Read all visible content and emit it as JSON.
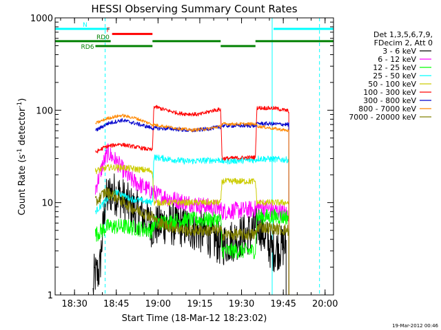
{
  "chart_data": {
    "type": "line",
    "title": "HESSI Observing Summary Count Rates",
    "xlabel": "Start Time (18-Mar-12 18:23:02)",
    "ylabel_main": "Count Rate (s",
    "ylabel_sup1": "-1",
    "ylabel_mid": " detector",
    "ylabel_sup2": "-1",
    "ylabel_end": ")",
    "footer": "19-Mar-2012 00:46",
    "y_scale": "log",
    "xlim": [
      "18:23:02",
      "20:03:02"
    ],
    "ylim": [
      1,
      1000
    ],
    "x_ticks": [
      "18:30",
      "18:45",
      "19:00",
      "19:15",
      "19:30",
      "19:45",
      "20:00"
    ],
    "y_ticks": [
      "1",
      "10",
      "100",
      "1000"
    ],
    "legend_placement": "right",
    "legend_header": [
      "Det 1,3,5,6,7,9,",
      "FDecim 2, Att 0"
    ],
    "flags": [
      {
        "label": "N",
        "color": "#00ffff",
        "level": 760,
        "segments": [
          [
            "18:23:02",
            "18:42:30"
          ],
          [
            "19:41:30",
            "20:03:02"
          ]
        ]
      },
      {
        "label": "F",
        "color": "#ff0000",
        "level": 670,
        "segments": [
          [
            "18:43:30",
            "18:58:00"
          ]
        ]
      },
      {
        "label": "RD0",
        "color": "#008000",
        "level": 560,
        "segments": [
          [
            "18:23:02",
            "18:43:00"
          ],
          [
            "18:58:00",
            "19:22:30"
          ],
          [
            "19:35:00",
            "20:03:02"
          ]
        ]
      },
      {
        "label": "RD6",
        "color": "#008000",
        "level": 495,
        "segments": [
          [
            "18:37:30",
            "18:58:00"
          ],
          [
            "19:22:30",
            "19:35:00"
          ]
        ]
      }
    ],
    "vlines": [
      {
        "x": "18:23:02",
        "color": "#00ffff",
        "style": "solid"
      },
      {
        "x": "18:41:00",
        "color": "#00ffff",
        "style": "dashed"
      },
      {
        "x": "19:41:00",
        "color": "#00ffff",
        "style": "solid"
      },
      {
        "x": "19:58:00",
        "color": "#00ffff",
        "style": "dashed"
      }
    ],
    "series": [
      {
        "name": "3 - 6 keV",
        "color": "#000000",
        "noise": 0.55,
        "points": [
          [
            "18:36:40",
            1.0
          ],
          [
            "18:37:00",
            1.6
          ],
          [
            "18:39:00",
            1.8
          ],
          [
            "18:41:00",
            10
          ],
          [
            "18:43:00",
            13
          ],
          [
            "18:46:00",
            12
          ],
          [
            "18:50:00",
            9
          ],
          [
            "18:55:00",
            7
          ],
          [
            "18:58:00",
            5.5
          ],
          [
            "19:02:00",
            6
          ],
          [
            "19:10:00",
            5.5
          ],
          [
            "19:18:00",
            4.5
          ],
          [
            "19:22:30",
            3.5
          ],
          [
            "19:23:00",
            3.5
          ],
          [
            "19:35:00",
            5
          ],
          [
            "19:36:00",
            6
          ],
          [
            "19:41:00",
            3
          ],
          [
            "19:46:00",
            3.5
          ]
        ]
      },
      {
        "name": "6 - 12 keV",
        "color": "#ff00ff",
        "noise": 0.22,
        "points": [
          [
            "18:37:30",
            14
          ],
          [
            "18:40:00",
            25
          ],
          [
            "18:42:00",
            35
          ],
          [
            "18:45:00",
            28
          ],
          [
            "18:50:00",
            18
          ],
          [
            "18:58:00",
            13
          ],
          [
            "19:00:00",
            12
          ],
          [
            "19:10:00",
            10
          ],
          [
            "19:22:30",
            8.5
          ],
          [
            "19:23:00",
            8
          ],
          [
            "19:35:00",
            8.5
          ],
          [
            "19:36:00",
            9
          ],
          [
            "19:40:00",
            8.5
          ],
          [
            "19:47:00",
            7.5
          ]
        ]
      },
      {
        "name": "12 - 25 keV",
        "color": "#00ff00",
        "noise": 0.2,
        "points": [
          [
            "18:37:30",
            4.5
          ],
          [
            "18:42:00",
            5.5
          ],
          [
            "18:48:00",
            5.5
          ],
          [
            "18:58:00",
            5
          ],
          [
            "18:58:30",
            6
          ],
          [
            "19:10:00",
            6.5
          ],
          [
            "19:22:30",
            6.5
          ],
          [
            "19:23:00",
            3
          ],
          [
            "19:35:00",
            3
          ],
          [
            "19:35:30",
            7
          ],
          [
            "19:47:00",
            7
          ]
        ]
      },
      {
        "name": "25 - 50 keV",
        "color": "#00ffff",
        "noise": 0.08,
        "points": [
          [
            "18:37:30",
            8
          ],
          [
            "18:42:00",
            11
          ],
          [
            "18:45:00",
            13
          ],
          [
            "18:50:00",
            11
          ],
          [
            "18:58:00",
            10
          ],
          [
            "18:58:30",
            31
          ],
          [
            "19:10:00",
            28
          ],
          [
            "19:22:30",
            29
          ],
          [
            "19:23:00",
            28
          ],
          [
            "19:35:00",
            29
          ],
          [
            "19:36:00",
            30
          ],
          [
            "19:47:00",
            29
          ]
        ]
      },
      {
        "name": "50 - 100 keV",
        "color": "#cccc00",
        "noise": 0.08,
        "points": [
          [
            "18:37:30",
            22
          ],
          [
            "18:42:00",
            24
          ],
          [
            "18:47:00",
            24
          ],
          [
            "18:58:00",
            22
          ],
          [
            "18:58:30",
            10
          ],
          [
            "19:10:00",
            10
          ],
          [
            "19:22:30",
            10
          ],
          [
            "19:23:00",
            17
          ],
          [
            "19:35:00",
            17
          ],
          [
            "19:35:30",
            10
          ],
          [
            "19:47:00",
            10
          ]
        ]
      },
      {
        "name": "100 - 300 keV",
        "color": "#ff0000",
        "noise": 0.05,
        "points": [
          [
            "18:37:30",
            35
          ],
          [
            "18:41:00",
            40
          ],
          [
            "18:46:00",
            43
          ],
          [
            "18:52:00",
            40
          ],
          [
            "18:58:00",
            37
          ],
          [
            "18:58:30",
            110
          ],
          [
            "19:03:00",
            100
          ],
          [
            "19:08:00",
            92
          ],
          [
            "19:15:00",
            90
          ],
          [
            "19:20:00",
            100
          ],
          [
            "19:22:30",
            102
          ],
          [
            "19:23:00",
            30
          ],
          [
            "19:35:00",
            31
          ],
          [
            "19:35:30",
            106
          ],
          [
            "19:42:00",
            105
          ],
          [
            "19:47:00",
            98
          ]
        ]
      },
      {
        "name": "300 - 800 keV",
        "color": "#0000cc",
        "noise": 0.05,
        "points": [
          [
            "18:37:30",
            60
          ],
          [
            "18:42:00",
            72
          ],
          [
            "18:47:00",
            78
          ],
          [
            "18:52:00",
            72
          ],
          [
            "18:58:00",
            64
          ],
          [
            "19:05:00",
            63
          ],
          [
            "19:12:00",
            60
          ],
          [
            "19:18:00",
            63
          ],
          [
            "19:22:30",
            66
          ],
          [
            "19:23:00",
            68
          ],
          [
            "19:35:00",
            68
          ],
          [
            "19:36:00",
            72
          ],
          [
            "19:47:00",
            70
          ]
        ]
      },
      {
        "name": "800 - 7000 keV",
        "color": "#ff8800",
        "noise": 0.04,
        "points": [
          [
            "18:37:30",
            72
          ],
          [
            "18:42:00",
            82
          ],
          [
            "18:47:00",
            88
          ],
          [
            "18:52:00",
            82
          ],
          [
            "18:58:00",
            70
          ],
          [
            "19:05:00",
            65
          ],
          [
            "19:12:00",
            61
          ],
          [
            "19:18:00",
            63
          ],
          [
            "19:22:30",
            67
          ],
          [
            "19:23:00",
            71
          ],
          [
            "19:35:00",
            71
          ],
          [
            "19:36:00",
            67
          ],
          [
            "19:47:00",
            60
          ]
        ]
      },
      {
        "name": "7000 - 20000 keV",
        "color": "#808000",
        "noise": 0.15,
        "points": [
          [
            "18:37:30",
            10
          ],
          [
            "18:41:00",
            13
          ],
          [
            "18:44:00",
            12
          ],
          [
            "18:50:00",
            9
          ],
          [
            "18:58:00",
            7
          ],
          [
            "19:00:00",
            6
          ],
          [
            "19:10:00",
            5
          ],
          [
            "19:22:30",
            5
          ],
          [
            "19:23:00",
            4.5
          ],
          [
            "19:35:00",
            4.5
          ],
          [
            "19:36:00",
            5.5
          ],
          [
            "19:47:00",
            5
          ]
        ]
      }
    ]
  }
}
